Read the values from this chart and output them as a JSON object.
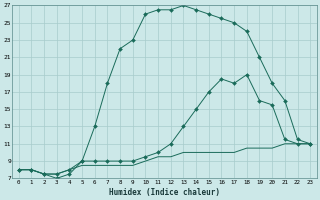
{
  "xlabel": "Humidex (Indice chaleur)",
  "background_color": "#cce8e8",
  "grid_color": "#a8cccc",
  "line_color": "#1a6b5a",
  "xlim": [
    -0.5,
    23.5
  ],
  "ylim": [
    7,
    27
  ],
  "xticks": [
    0,
    1,
    2,
    3,
    4,
    5,
    6,
    7,
    8,
    9,
    10,
    11,
    12,
    13,
    14,
    15,
    16,
    17,
    18,
    19,
    20,
    21,
    22,
    23
  ],
  "yticks": [
    7,
    9,
    11,
    13,
    15,
    17,
    19,
    21,
    23,
    25,
    27
  ],
  "line1_x": [
    0,
    1,
    2,
    3,
    4,
    5,
    6,
    7,
    8,
    9,
    10,
    11,
    12,
    13,
    14,
    15,
    16,
    17,
    18,
    19,
    20,
    21,
    22,
    23
  ],
  "line1_y": [
    8,
    8,
    7.5,
    7.5,
    8,
    8.5,
    8.5,
    8.5,
    8.5,
    8.5,
    9,
    9.5,
    9.5,
    10,
    10,
    10,
    10,
    10,
    10.5,
    10.5,
    10.5,
    11,
    11,
    11
  ],
  "line2_x": [
    0,
    1,
    2,
    3,
    4,
    5,
    6,
    7,
    8,
    9,
    10,
    11,
    12,
    13,
    14,
    15,
    16,
    17,
    18,
    19,
    20,
    21,
    22,
    23
  ],
  "line2_y": [
    8,
    8,
    7.5,
    7.5,
    8,
    9,
    9,
    9,
    9,
    9,
    9.5,
    10,
    11,
    13,
    15,
    17,
    18.5,
    18,
    19,
    16,
    15.5,
    11.5,
    11,
    11
  ],
  "line3_x": [
    0,
    1,
    2,
    3,
    4,
    5,
    6,
    7,
    8,
    9,
    10,
    11,
    12,
    13,
    14,
    15,
    16,
    17,
    18,
    19,
    20,
    21,
    22,
    23
  ],
  "line3_y": [
    8,
    8,
    7.5,
    7,
    7.5,
    9,
    13,
    18,
    22,
    23,
    26,
    26.5,
    26.5,
    27,
    26.5,
    26,
    25.5,
    25,
    24,
    21,
    18,
    16,
    11.5,
    11
  ]
}
